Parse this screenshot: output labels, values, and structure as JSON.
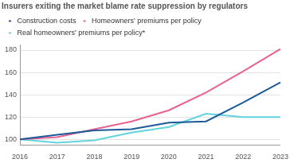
{
  "chart_data": {
    "type": "line",
    "title": "Insurers exiting the market blame rate suppression by regulators",
    "categories": [
      "2016",
      "2017",
      "2018",
      "2019",
      "2020",
      "2021",
      "2022",
      "2023"
    ],
    "series": [
      {
        "name": "Construction costs",
        "color": "#1d5a99",
        "values": [
          100,
          104,
          108,
          109,
          115,
          116,
          133,
          151
        ]
      },
      {
        "name": "Homeowners' premiums per policy",
        "color": "#e8628f",
        "values": [
          100,
          102,
          109,
          116,
          126,
          142,
          161,
          181
        ]
      },
      {
        "name": "Real homeowners' premiums per policy*",
        "color": "#63d3dc",
        "values": [
          100,
          97,
          99,
          106,
          111,
          123,
          120,
          120
        ]
      }
    ],
    "ylim": [
      95,
      185
    ],
    "yticks": [
      100,
      120,
      140,
      160,
      180
    ],
    "grid": true,
    "legend": "top"
  }
}
